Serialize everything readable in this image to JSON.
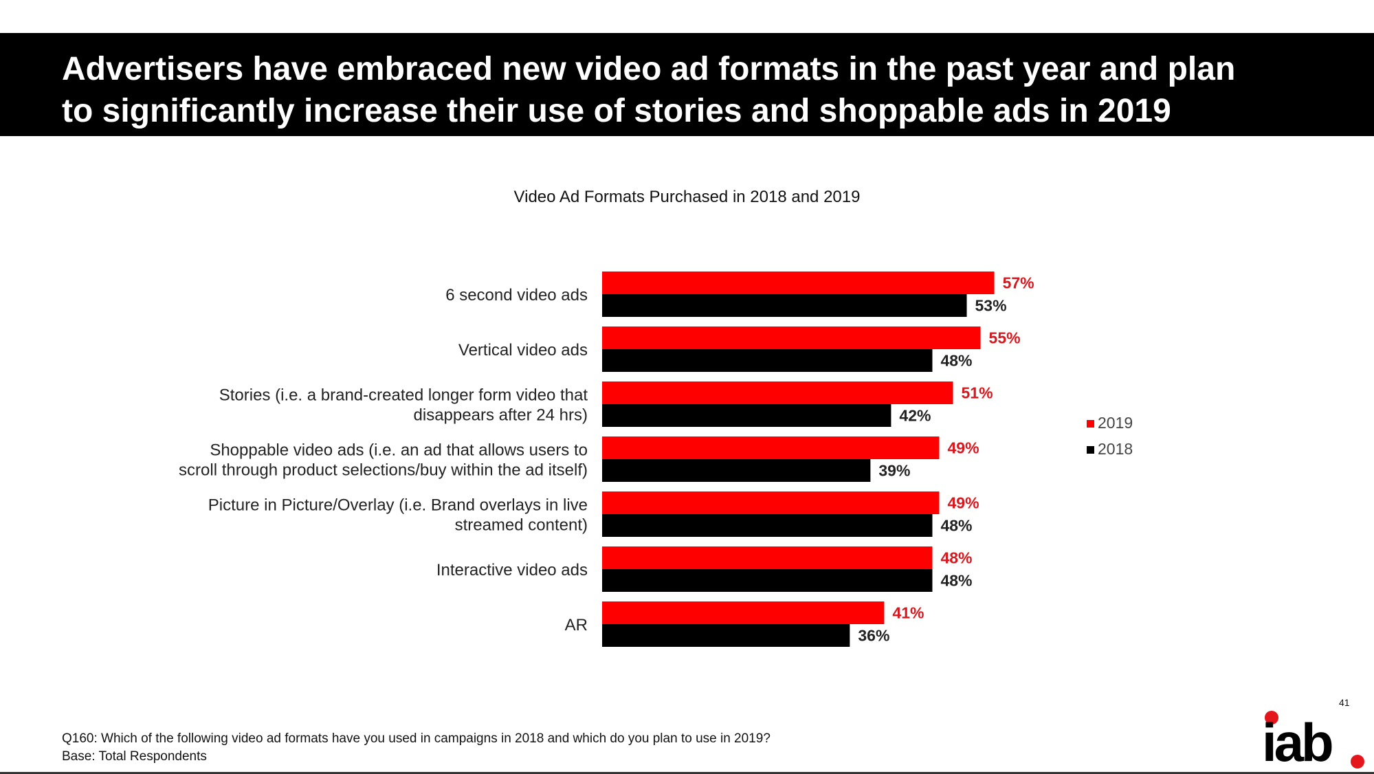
{
  "header": {
    "line1": "Advertisers have embraced new video ad formats in the past year and plan",
    "line2": "to significantly increase their use of stories and shoppable ads in 2019"
  },
  "footnote": {
    "question": "Q160: Which of the following video ad formats have you used in campaigns in 2018 and which do you plan to use in 2019?",
    "base": "Base: Total Respondents"
  },
  "page_number": "41",
  "logo": {
    "text": "iab",
    "accent_color": "#e4161c"
  },
  "colors": {
    "series_2019": "#ff0000",
    "series_2018": "#000000",
    "label_2019": "#d7191f",
    "label_2018": "#222222"
  },
  "chart_data": {
    "type": "bar",
    "orientation": "horizontal",
    "title": "Video Ad Formats Purchased in 2018 and 2019",
    "categories": [
      [
        "6 second video ads"
      ],
      [
        "Vertical video ads"
      ],
      [
        "Stories (i.e. a brand-created longer form video that",
        "disappears after 24 hrs)"
      ],
      [
        "Shoppable video ads (i.e. an ad that allows users to",
        "scroll through product selections/buy within the ad itself)"
      ],
      [
        "Picture in Picture/Overlay (i.e. Brand overlays in live",
        "streamed content)"
      ],
      [
        "Interactive video ads"
      ],
      [
        "AR"
      ]
    ],
    "series": [
      {
        "name": "2019",
        "values": [
          57,
          55,
          51,
          49,
          49,
          48,
          41
        ],
        "labels": [
          "57%",
          "55%",
          "51%",
          "49%",
          "49%",
          "48%",
          "41%"
        ]
      },
      {
        "name": "2018",
        "values": [
          53,
          48,
          42,
          39,
          48,
          48,
          36
        ],
        "labels": [
          "53%",
          "48%",
          "42%",
          "39%",
          "48%",
          "48%",
          "36%"
        ]
      }
    ],
    "xlim": [
      0,
      100
    ],
    "legend_position": "right",
    "grid": false
  }
}
